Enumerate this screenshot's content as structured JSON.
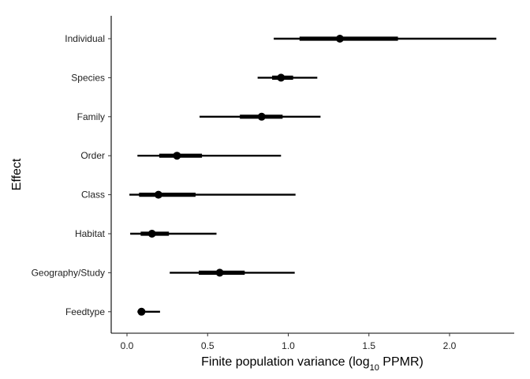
{
  "chart_data": {
    "type": "interval",
    "xlabel_prefix": "Finite population variance (log",
    "xlabel_sub": "10",
    "xlabel_suffix": " PPMR)",
    "ylabel": "Effect",
    "xlim": [
      -0.1,
      2.4
    ],
    "x_ticks": [
      0.0,
      0.5,
      1.0,
      1.5,
      2.0
    ],
    "x_tick_labels": [
      "0.0",
      "0.5",
      "1.0",
      "1.5",
      "2.0"
    ],
    "grid": false,
    "categories": [
      "Individual",
      "Species",
      "Family",
      "Order",
      "Class",
      "Habitat",
      "Geography/Study",
      "Feedtype"
    ],
    "points": [
      {
        "effect": "Individual",
        "estimate": 1.32,
        "inner": [
          1.07,
          1.68
        ],
        "outer": [
          0.91,
          2.29
        ]
      },
      {
        "effect": "Species",
        "estimate": 0.955,
        "inner": [
          0.9,
          1.03
        ],
        "outer": [
          0.81,
          1.18
        ]
      },
      {
        "effect": "Family",
        "estimate": 0.835,
        "inner": [
          0.7,
          0.965
        ],
        "outer": [
          0.45,
          1.2
        ]
      },
      {
        "effect": "Order",
        "estimate": 0.31,
        "inner": [
          0.2,
          0.465
        ],
        "outer": [
          0.065,
          0.955
        ]
      },
      {
        "effect": "Class",
        "estimate": 0.195,
        "inner": [
          0.075,
          0.425
        ],
        "outer": [
          0.015,
          1.045
        ]
      },
      {
        "effect": "Habitat",
        "estimate": 0.155,
        "inner": [
          0.085,
          0.26
        ],
        "outer": [
          0.02,
          0.555
        ]
      },
      {
        "effect": "Geography/Study",
        "estimate": 0.575,
        "inner": [
          0.445,
          0.73
        ],
        "outer": [
          0.265,
          1.04
        ]
      },
      {
        "effect": "Feedtype",
        "estimate": 0.09,
        "inner": [
          0.075,
          0.11
        ],
        "outer": [
          0.065,
          0.205
        ]
      }
    ]
  }
}
